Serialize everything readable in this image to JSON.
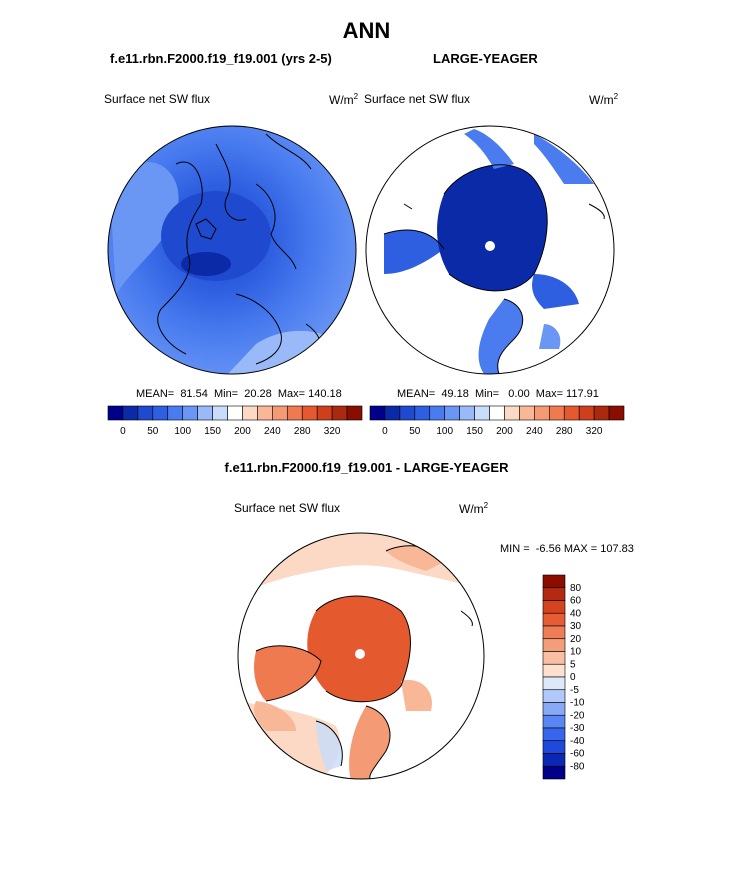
{
  "page": {
    "title": "ANN",
    "case_left": "f.e11.rbn.F2000.f19_f19.001 (yrs 2-5)",
    "case_right": "LARGE-YEAGER",
    "diff_title": "f.e11.rbn.F2000.f19_f19.001 - LARGE-YEAGER"
  },
  "panels": {
    "left": {
      "variable": "Surface net SW flux",
      "units_base": "W/m",
      "units_exp": "2",
      "stats": "MEAN=  81.54  Min=  20.28  Max= 140.18"
    },
    "right": {
      "variable": "Surface net SW flux",
      "units_base": "W/m",
      "units_exp": "2",
      "stats": "MEAN=  49.18  Min=   0.00  Max= 117.91"
    },
    "diff": {
      "variable": "Surface net SW flux",
      "units_base": "W/m",
      "units_exp": "2",
      "stats": "MIN =  -6.56 MAX = 107.83"
    }
  },
  "colors": {
    "map_colors": [
      "#00008b",
      "#0a2aa8",
      "#1f49cf",
      "#2e5fe0",
      "#4a7cf0",
      "#6b97f4",
      "#9ab9f8",
      "#c8dcfb",
      "#ffffff",
      "#fbd9c4",
      "#f8b796",
      "#f49a74",
      "#ef7a50",
      "#e5592e",
      "#d03f1c",
      "#aa2a10",
      "#8b0d00"
    ],
    "diff_colors": [
      "#00008b",
      "#0b28b5",
      "#2048dc",
      "#3766ec",
      "#5a86f3",
      "#87a9f6",
      "#b0c9fa",
      "#dde8f8",
      "#fde0cf",
      "#f8bfa3",
      "#f39d7a",
      "#ee7c56",
      "#e65c34",
      "#d4421e",
      "#b42a10",
      "#8b0d00"
    ]
  },
  "chart_data": [
    {
      "type": "heatmap",
      "name": "left-polar-map",
      "title": "Surface net SW flux",
      "units": "W/m^2",
      "projection": "north-polar-stereographic",
      "stats": {
        "mean": 81.54,
        "min": 20.28,
        "max": 140.18
      },
      "colorbar_ticks": [
        "0",
        "50",
        "100",
        "150",
        "200",
        "240",
        "280",
        "320"
      ],
      "dominant_field_range": [
        30,
        140
      ]
    },
    {
      "type": "heatmap",
      "name": "right-polar-map",
      "title": "Surface net SW flux",
      "units": "W/m^2",
      "projection": "north-polar-stereographic",
      "stats": {
        "mean": 49.18,
        "min": 0.0,
        "max": 117.91
      },
      "colorbar_ticks": [
        "0",
        "50",
        "100",
        "150",
        "200",
        "240",
        "280",
        "320"
      ],
      "missing_over_land": true
    },
    {
      "type": "heatmap",
      "name": "difference-polar-map",
      "title": "Surface net SW flux",
      "units": "W/m^2",
      "projection": "north-polar-stereographic",
      "stats": {
        "min": -6.56,
        "max": 107.83
      },
      "colorbar_ticks": [
        "80",
        "60",
        "40",
        "30",
        "20",
        "10",
        "5",
        "0",
        "-5",
        "-10",
        "-20",
        "-30",
        "-40",
        "-60",
        "-80"
      ],
      "colorbar_orientation": "vertical"
    }
  ]
}
